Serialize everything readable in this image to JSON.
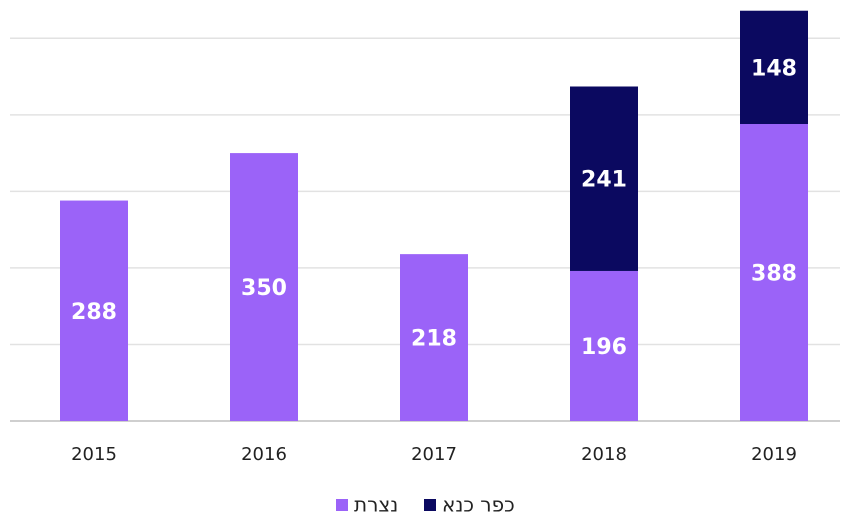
{
  "chart_data": {
    "type": "stacked_bar",
    "categories": [
      "2015",
      "2016",
      "2017",
      "2018",
      "2019"
    ],
    "series": [
      {
        "name": "נצרת",
        "color": "#9b63f8",
        "values": [
          288,
          350,
          218,
          196,
          388
        ]
      },
      {
        "name": "כפר כנא",
        "color": "#0b0960",
        "values": [
          null,
          null,
          null,
          241,
          148
        ]
      }
    ],
    "ylim": [
      0,
      550
    ],
    "yticks": [
      0,
      100,
      200,
      300,
      400,
      500
    ],
    "grid": true,
    "legend": "bottom"
  }
}
